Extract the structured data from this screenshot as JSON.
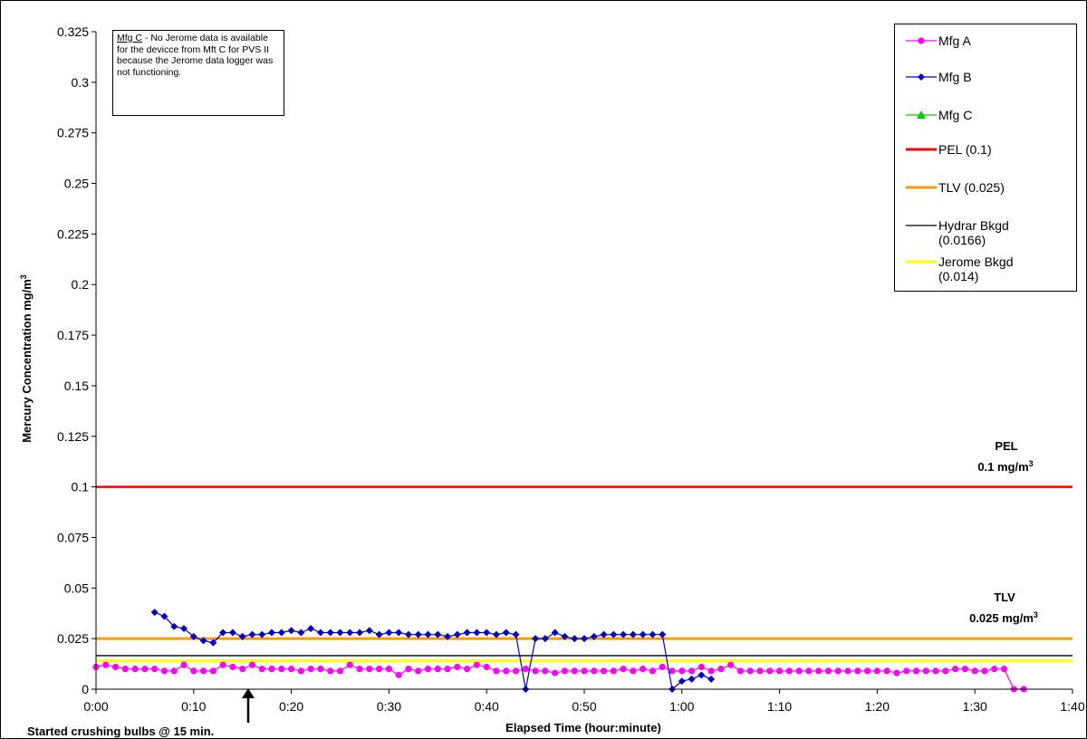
{
  "chart_data": {
    "type": "line",
    "xlabel": "Elapsed Time (hour:minute)",
    "ylabel": "Mercury Concentration mg/m³",
    "x_tick_labels": [
      "0:00",
      "0:10",
      "0:20",
      "0:30",
      "0:40",
      "0:50",
      "1:00",
      "1:10",
      "1:20",
      "1:30",
      "1:40"
    ],
    "y_tick_labels": [
      "0",
      "0.025",
      "0.05",
      "0.075",
      "0.1",
      "0.125",
      "0.15",
      "0.175",
      "0.2",
      "0.225",
      "0.25",
      "0.275",
      "0.3",
      "0.325"
    ],
    "xlim_minutes": [
      0,
      100
    ],
    "ylim": [
      0,
      0.325
    ],
    "grid": false,
    "legend_position": "top-right",
    "series": [
      {
        "name": "Mfg A",
        "color": "#ff00ff",
        "marker": "circle",
        "x": [
          0,
          1,
          2,
          3,
          4,
          5,
          6,
          7,
          8,
          9,
          10,
          11,
          12,
          13,
          14,
          15,
          16,
          17,
          18,
          19,
          20,
          21,
          22,
          23,
          24,
          25,
          26,
          27,
          28,
          29,
          30,
          31,
          32,
          33,
          34,
          35,
          36,
          37,
          38,
          39,
          40,
          41,
          42,
          43,
          44,
          45,
          46,
          47,
          48,
          49,
          50,
          51,
          52,
          53,
          54,
          55,
          56,
          57,
          58,
          59,
          60,
          61,
          62,
          63,
          64,
          65,
          66,
          67,
          68,
          69,
          70,
          71,
          72,
          73,
          74,
          75,
          76,
          77,
          78,
          79,
          80,
          81,
          82,
          83,
          84,
          85,
          86,
          87,
          88,
          89,
          90,
          91,
          92,
          93,
          94,
          95
        ],
        "y": [
          0.011,
          0.012,
          0.011,
          0.01,
          0.01,
          0.01,
          0.01,
          0.009,
          0.009,
          0.012,
          0.009,
          0.009,
          0.009,
          0.012,
          0.011,
          0.01,
          0.012,
          0.01,
          0.01,
          0.01,
          0.01,
          0.009,
          0.01,
          0.01,
          0.009,
          0.009,
          0.012,
          0.01,
          0.01,
          0.01,
          0.01,
          0.007,
          0.01,
          0.009,
          0.01,
          0.01,
          0.01,
          0.011,
          0.01,
          0.012,
          0.011,
          0.009,
          0.009,
          0.009,
          0.01,
          0.009,
          0.009,
          0.008,
          0.009,
          0.009,
          0.009,
          0.009,
          0.009,
          0.009,
          0.01,
          0.009,
          0.01,
          0.009,
          0.011,
          0.009,
          0.009,
          0.009,
          0.011,
          0.009,
          0.01,
          0.012,
          0.009,
          0.009,
          0.009,
          0.009,
          0.009,
          0.009,
          0.009,
          0.009,
          0.009,
          0.009,
          0.009,
          0.009,
          0.009,
          0.009,
          0.009,
          0.009,
          0.008,
          0.009,
          0.009,
          0.009,
          0.009,
          0.009,
          0.01,
          0.01,
          0.009,
          0.009,
          0.01,
          0.01,
          0,
          0
        ]
      },
      {
        "name": "Mfg B",
        "color": "#0000cc",
        "marker": "diamond",
        "x": [
          6,
          7,
          8,
          9,
          10,
          11,
          12,
          13,
          14,
          15,
          16,
          17,
          18,
          19,
          20,
          21,
          22,
          23,
          24,
          25,
          26,
          27,
          28,
          29,
          30,
          31,
          32,
          33,
          34,
          35,
          36,
          37,
          38,
          39,
          40,
          41,
          42,
          43,
          44,
          45,
          46,
          47,
          48,
          49,
          50,
          51,
          52,
          53,
          54,
          55,
          56,
          57,
          58,
          59,
          60,
          61,
          62,
          63
        ],
        "y": [
          0.038,
          0.036,
          0.031,
          0.03,
          0.026,
          0.024,
          0.023,
          0.028,
          0.028,
          0.026,
          0.027,
          0.027,
          0.028,
          0.028,
          0.029,
          0.028,
          0.03,
          0.028,
          0.028,
          0.028,
          0.028,
          0.028,
          0.029,
          0.027,
          0.028,
          0.028,
          0.027,
          0.027,
          0.027,
          0.027,
          0.026,
          0.027,
          0.028,
          0.028,
          0.028,
          0.027,
          0.028,
          0.027,
          0,
          0.025,
          0.025,
          0.028,
          0.026,
          0.025,
          0.025,
          0.026,
          0.027,
          0.027,
          0.027,
          0.027,
          0.027,
          0.027,
          0.027,
          0,
          0.004,
          0.005,
          0.007,
          0.005
        ]
      },
      {
        "name": "Mfg C",
        "color": "#00cc00",
        "marker": "triangle",
        "x": [],
        "y": []
      },
      {
        "name": "PEL (0.1)",
        "color": "#ff0000",
        "constant": 0.1
      },
      {
        "name": "TLV (0.025)",
        "color": "#ff9900",
        "constant": 0.025
      },
      {
        "name": "Hydrar Bkgd\n(0.0166)",
        "color": "#000000",
        "constant": 0.0166
      },
      {
        "name": "Jerome Bkgd\n(0.014)",
        "color": "#ffff00",
        "constant": 0.014
      }
    ],
    "annotations": {
      "pel_title": "PEL",
      "pel_value": "0.1 mg/m",
      "pel_sup": "3",
      "tlv_title": "TLV",
      "tlv_value": "0.025 mg/m",
      "tlv_sup": "3",
      "crushing": "Started crushing bulbs @ 15 min."
    },
    "note": {
      "underlined": "Mfg C",
      "text": " - No Jerome data is available for the devicce from Mft C for PVS II because the Jerome data logger was not functioning."
    }
  }
}
